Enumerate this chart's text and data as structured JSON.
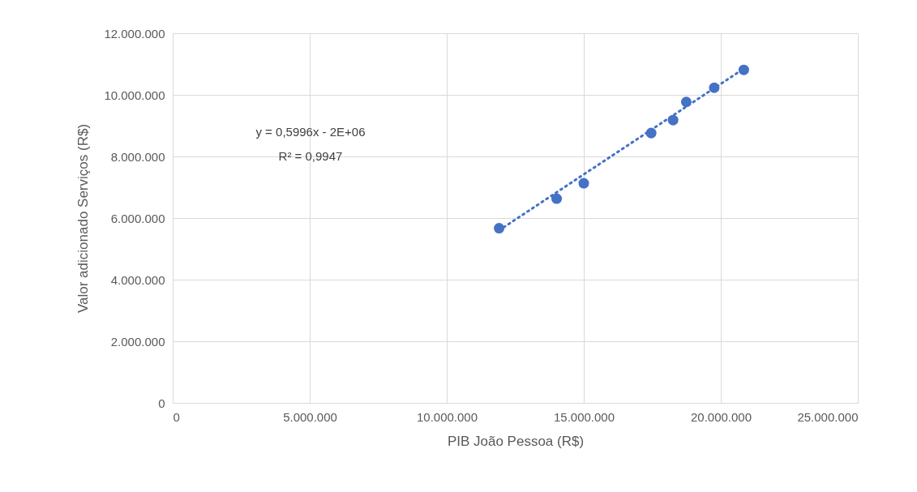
{
  "chart_data": {
    "type": "scatter",
    "xlabel": "PIB João Pessoa (R$)",
    "ylabel": "Valor adicionado Serviços (R$)",
    "x": [
      11910000,
      14010000,
      15000000,
      17460000,
      18260000,
      18740000,
      19760000,
      20840000
    ],
    "series": [
      {
        "type": "scatter",
        "color": "#4472c4",
        "marker": "circle",
        "values": [
          5670000,
          6630000,
          7130000,
          8760000,
          9180000,
          9770000,
          10230000,
          10810000
        ]
      },
      {
        "type": "line",
        "color": "#4472c4",
        "line_style": "dotted",
        "marker": "none",
        "x": [
          11910000,
          20840000
        ],
        "values": [
          5600000,
          10850000
        ]
      }
    ],
    "xlim": [
      0,
      25000000
    ],
    "ylim": [
      0,
      12000000
    ],
    "xticks": [
      0,
      {
        "value": 5000000,
        "label": "5.000.000"
      },
      {
        "value": 10000000,
        "label": "10.000.000"
      },
      {
        "value": 15000000,
        "label": "15.000.000"
      },
      {
        "value": 20000000,
        "label": "20.000.000"
      },
      {
        "value": 25000000,
        "label": "25.000.000"
      }
    ],
    "yticks": [
      0,
      {
        "value": 2000000,
        "label": "2.000.000"
      },
      {
        "value": 4000000,
        "label": "4.000.000"
      },
      {
        "value": 6000000,
        "label": "6.000.000"
      },
      {
        "value": 8000000,
        "label": "8.000.000"
      },
      {
        "value": 10000000,
        "label": "10.000.000"
      },
      {
        "value": 12000000,
        "label": "12.000.000"
      }
    ],
    "annotations": [
      "y = 0,5996x - 2E+06",
      "R² = 0,9947"
    ],
    "grid": true
  }
}
